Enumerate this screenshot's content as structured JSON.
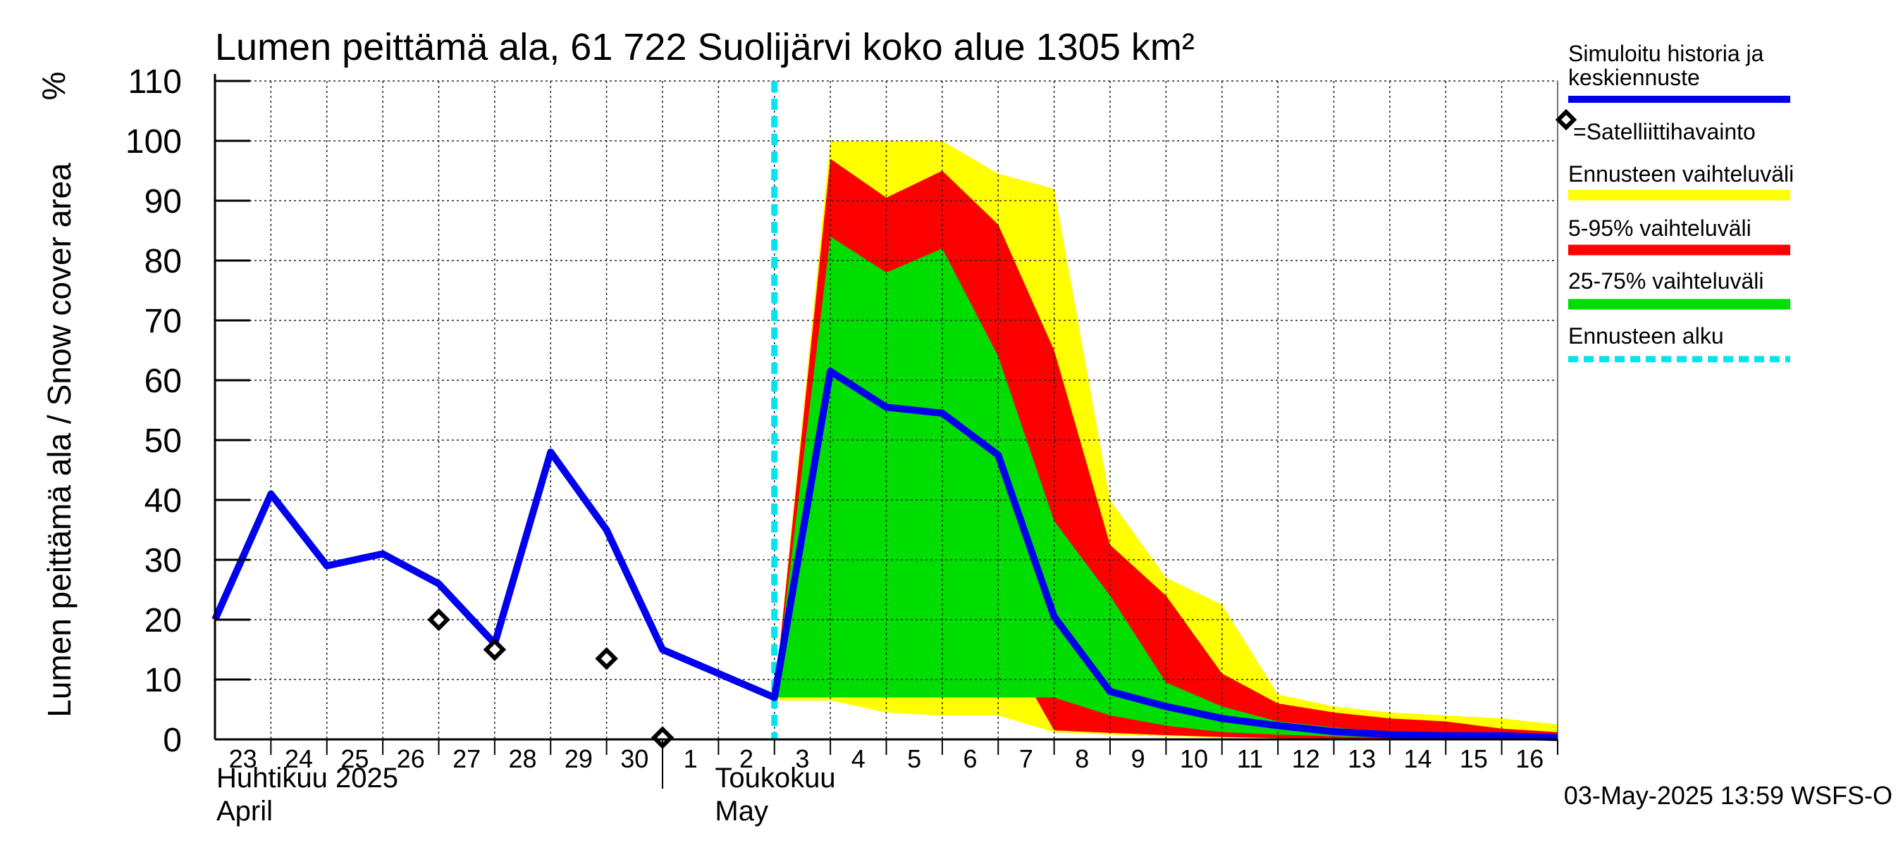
{
  "chart_data": {
    "type": "area",
    "title": "Lumen peittämä ala, 61 722 Suolijärvi koko alue 1305 km²",
    "ylabel": "Lumen peittämä ala / Snow cover area",
    "yunit": "%",
    "ylim": [
      0,
      110
    ],
    "yticks": [
      0,
      10,
      20,
      30,
      40,
      50,
      60,
      70,
      80,
      90,
      100,
      110
    ],
    "x_dates": [
      "2025-04-23",
      "2025-04-24",
      "2025-04-25",
      "2025-04-26",
      "2025-04-27",
      "2025-04-28",
      "2025-04-29",
      "2025-04-30",
      "2025-05-01",
      "2025-05-02",
      "2025-05-03",
      "2025-05-04",
      "2025-05-05",
      "2025-05-06",
      "2025-05-07",
      "2025-05-08",
      "2025-05-09",
      "2025-05-10",
      "2025-05-11",
      "2025-05-12",
      "2025-05-13",
      "2025-05-14",
      "2025-05-15",
      "2025-05-16",
      "2025-05-17"
    ],
    "x_tick_labels": [
      "23",
      "24",
      "25",
      "26",
      "27",
      "28",
      "29",
      "30",
      "1",
      "2",
      "3",
      "4",
      "5",
      "6",
      "7",
      "8",
      "9",
      "10",
      "11",
      "12",
      "13",
      "14",
      "15",
      "16"
    ],
    "month_labels": [
      {
        "fi": "Huhtikuu  2025",
        "en": "April"
      },
      {
        "fi": "Toukokuu",
        "en": "May"
      }
    ],
    "forecast_start": "2025-05-03",
    "grid": true,
    "series": [
      {
        "name": "Simuloitu historia ja keskiennuste",
        "kind": "line",
        "color": "#0000ee",
        "x": [
          "2025-04-23",
          "2025-04-24",
          "2025-04-25",
          "2025-04-26",
          "2025-04-27",
          "2025-04-28",
          "2025-04-29",
          "2025-04-30",
          "2025-05-01",
          "2025-05-02",
          "2025-05-03",
          "2025-05-04",
          "2025-05-05",
          "2025-05-06",
          "2025-05-07",
          "2025-05-08",
          "2025-05-09",
          "2025-05-10",
          "2025-05-11",
          "2025-05-12",
          "2025-05-13",
          "2025-05-14",
          "2025-05-15",
          "2025-05-16",
          "2025-05-17"
        ],
        "y": [
          20,
          41,
          29,
          31,
          26,
          16,
          48,
          35,
          15,
          11,
          7,
          61.5,
          55.5,
          54.5,
          47.5,
          20.5,
          8,
          5.5,
          3.5,
          2.3,
          1.3,
          0.8,
          0.6,
          0.6,
          0.3
        ]
      },
      {
        "name": "Satelliittihavainto",
        "kind": "points",
        "color": "#000000",
        "x": [
          "2025-04-27",
          "2025-04-28",
          "2025-04-30",
          "2025-05-01"
        ],
        "y": [
          20,
          15,
          13.5,
          0.3
        ]
      }
    ],
    "bands": [
      {
        "name": "Ennusteen vaihteluväli",
        "color": "#ffff00",
        "x": [
          "2025-05-03",
          "2025-05-04",
          "2025-05-05",
          "2025-05-06",
          "2025-05-07",
          "2025-05-08",
          "2025-05-09",
          "2025-05-10",
          "2025-05-11",
          "2025-05-12",
          "2025-05-13",
          "2025-05-14",
          "2025-05-15",
          "2025-05-16",
          "2025-05-17"
        ],
        "upper": [
          7,
          100,
          100,
          100,
          94.5,
          92,
          40,
          27,
          22.5,
          7.5,
          5.5,
          4.5,
          4,
          3.5,
          2.5
        ],
        "lower": [
          6.5,
          6.5,
          4.5,
          4,
          4,
          1.2,
          0.8,
          0.5,
          0.3,
          0.2,
          0.1,
          0.1,
          0.1,
          0.1,
          0
        ]
      },
      {
        "name": "5-95% vaihteluväli",
        "color": "#ff0000",
        "x": [
          "2025-05-03",
          "2025-05-04",
          "2025-05-05",
          "2025-05-06",
          "2025-05-07",
          "2025-05-08",
          "2025-05-09",
          "2025-05-10",
          "2025-05-11",
          "2025-05-12",
          "2025-05-13",
          "2025-05-14",
          "2025-05-15",
          "2025-05-16",
          "2025-05-17"
        ],
        "upper": [
          7,
          97,
          90.5,
          95,
          86,
          65,
          32.5,
          24,
          11,
          6,
          4.5,
          3.5,
          3,
          1.8,
          1.2
        ],
        "lower": [
          6.8,
          24,
          22.5,
          20.5,
          18,
          1.5,
          1.1,
          0.7,
          0.4,
          0.2,
          0.1,
          0.1,
          0.1,
          0.1,
          0
        ]
      },
      {
        "name": "25-75% vaihteluväli",
        "color": "#00dd00",
        "x": [
          "2025-05-03",
          "2025-05-04",
          "2025-05-05",
          "2025-05-06",
          "2025-05-07",
          "2025-05-08",
          "2025-05-09",
          "2025-05-10",
          "2025-05-11",
          "2025-05-12",
          "2025-05-13",
          "2025-05-14",
          "2025-05-15",
          "2025-05-16",
          "2025-05-17"
        ],
        "upper": [
          7,
          84,
          78,
          82,
          64,
          36.5,
          24,
          9.5,
          5.5,
          3,
          2,
          1.2,
          0.8,
          0.6,
          0.3
        ],
        "lower": [
          7,
          7,
          7,
          7,
          7,
          7,
          4,
          2.3,
          1.2,
          0.8,
          0.5,
          0.3,
          0.2,
          0.1,
          0.1
        ]
      }
    ],
    "legend": {
      "placement": "right",
      "items": [
        {
          "label": "Simuloitu historia ja keskiennuste",
          "color": "#0000ee",
          "style": "line"
        },
        {
          "label": "=Satelliittihavainto",
          "color": "#000000",
          "style": "diamond"
        },
        {
          "label": "Ennusteen vaihteluväli",
          "color": "#ffff00",
          "style": "thick"
        },
        {
          "label": "5-95% vaihteluväli",
          "color": "#ff0000",
          "style": "thick"
        },
        {
          "label": "25-75% vaihteluväli",
          "color": "#00dd00",
          "style": "thick"
        },
        {
          "label": "Ennusteen alku",
          "color": "#00e5ee",
          "style": "dashed"
        }
      ]
    },
    "footer": "03-May-2025 13:59 WSFS-O"
  }
}
